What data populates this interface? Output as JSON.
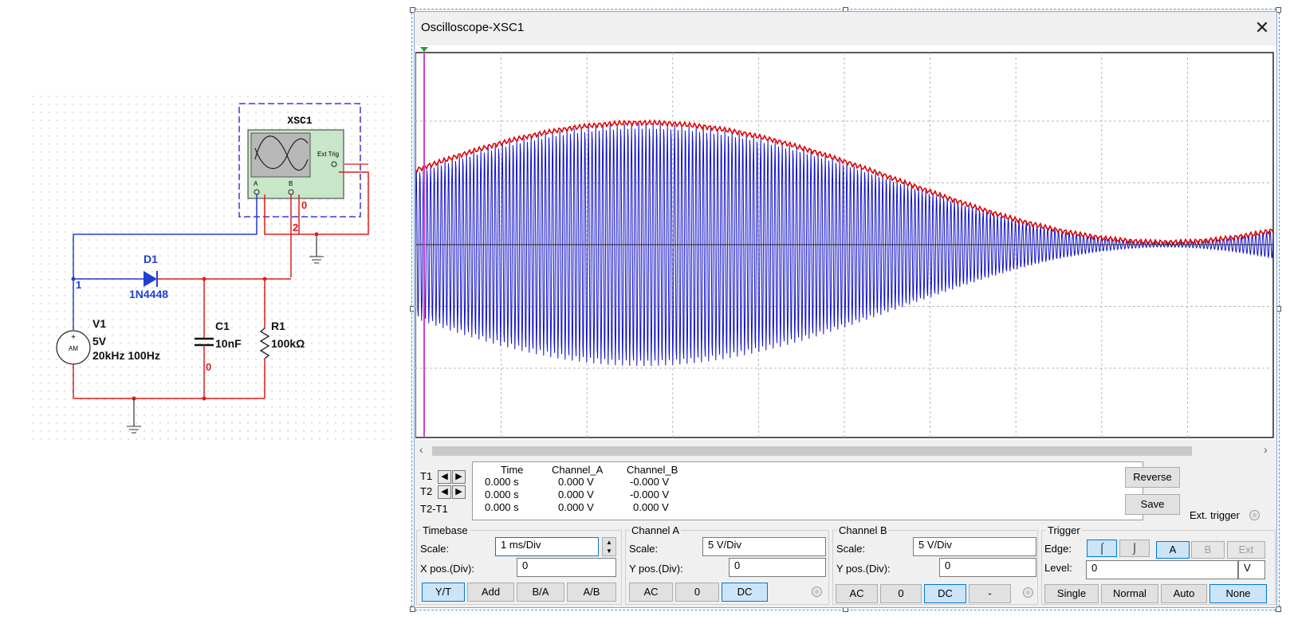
{
  "schematic": {
    "instrument": {
      "name": "XSC1",
      "ext_trig": "Ext Trig",
      "ch_a": "A",
      "ch_b": "B",
      "plus": "+",
      "minus": "_"
    },
    "diode": {
      "ref": "D1",
      "model": "1N4448"
    },
    "capacitor": {
      "ref": "C1",
      "value": "10nF"
    },
    "resistor": {
      "ref": "R1",
      "value": "100kΩ"
    },
    "source": {
      "ref": "V1",
      "amplitude": "5V",
      "freqs": "20kHz 100Hz",
      "symbol": "AM",
      "plus": "+"
    },
    "nodes": {
      "n1": "1",
      "n2": "2",
      "n0_a": "0",
      "n0_b": "0"
    },
    "colors": {
      "wire_blue": "#1f3fd6",
      "wire_red": "#e01b1b",
      "component_blue": "#1f3fd6"
    }
  },
  "window": {
    "title": "Oscilloscope-XSC1",
    "close_icon": "close-icon"
  },
  "readout": {
    "headers": {
      "time": "Time",
      "channel_a": "Channel_A",
      "channel_b": "Channel_B"
    },
    "rows": [
      {
        "label": "T1",
        "time": "0.000 s",
        "a": "0.000 V",
        "b": "-0.000 V"
      },
      {
        "label": "T2",
        "time": "0.000 s",
        "a": "0.000 V",
        "b": "-0.000 V"
      },
      {
        "label": "T2-T1",
        "time": "0.000 s",
        "a": "0.000 V",
        "b": "0.000 V"
      }
    ],
    "reverse_label": "Reverse",
    "save_label": "Save",
    "ext_trigger_label": "Ext. trigger"
  },
  "timebase": {
    "title": "Timebase",
    "scale_label": "Scale:",
    "scale_value": "1 ms/Div",
    "xpos_label": "X pos.(Div):",
    "xpos_value": "0",
    "buttons": [
      "Y/T",
      "Add",
      "B/A",
      "A/B"
    ],
    "selected": "Y/T"
  },
  "channel_a": {
    "title": "Channel A",
    "scale_label": "Scale:",
    "scale_value": "5  V/Div",
    "ypos_label": "Y pos.(Div):",
    "ypos_value": "0",
    "buttons": [
      "AC",
      "0",
      "DC"
    ],
    "selected": "DC"
  },
  "channel_b": {
    "title": "Channel B",
    "scale_label": "Scale:",
    "scale_value": "5  V/Div",
    "ypos_label": "Y pos.(Div):",
    "ypos_value": "0",
    "buttons": [
      "AC",
      "0",
      "DC",
      "-"
    ],
    "selected": "DC"
  },
  "trigger": {
    "title": "Trigger",
    "edge_label": "Edge:",
    "source_buttons": [
      "A",
      "B",
      "Ext"
    ],
    "source_selected": "A",
    "level_label": "Level:",
    "level_value": "0",
    "level_unit": "V",
    "mode_buttons": [
      "Single",
      "Normal",
      "Auto",
      "None"
    ],
    "mode_selected": "None"
  },
  "display": {
    "trace_a_color": "#1010c8",
    "trace_b_color": "#e00000",
    "cursor_color": "#d040d0",
    "grid_color": "#b8b8b8"
  }
}
